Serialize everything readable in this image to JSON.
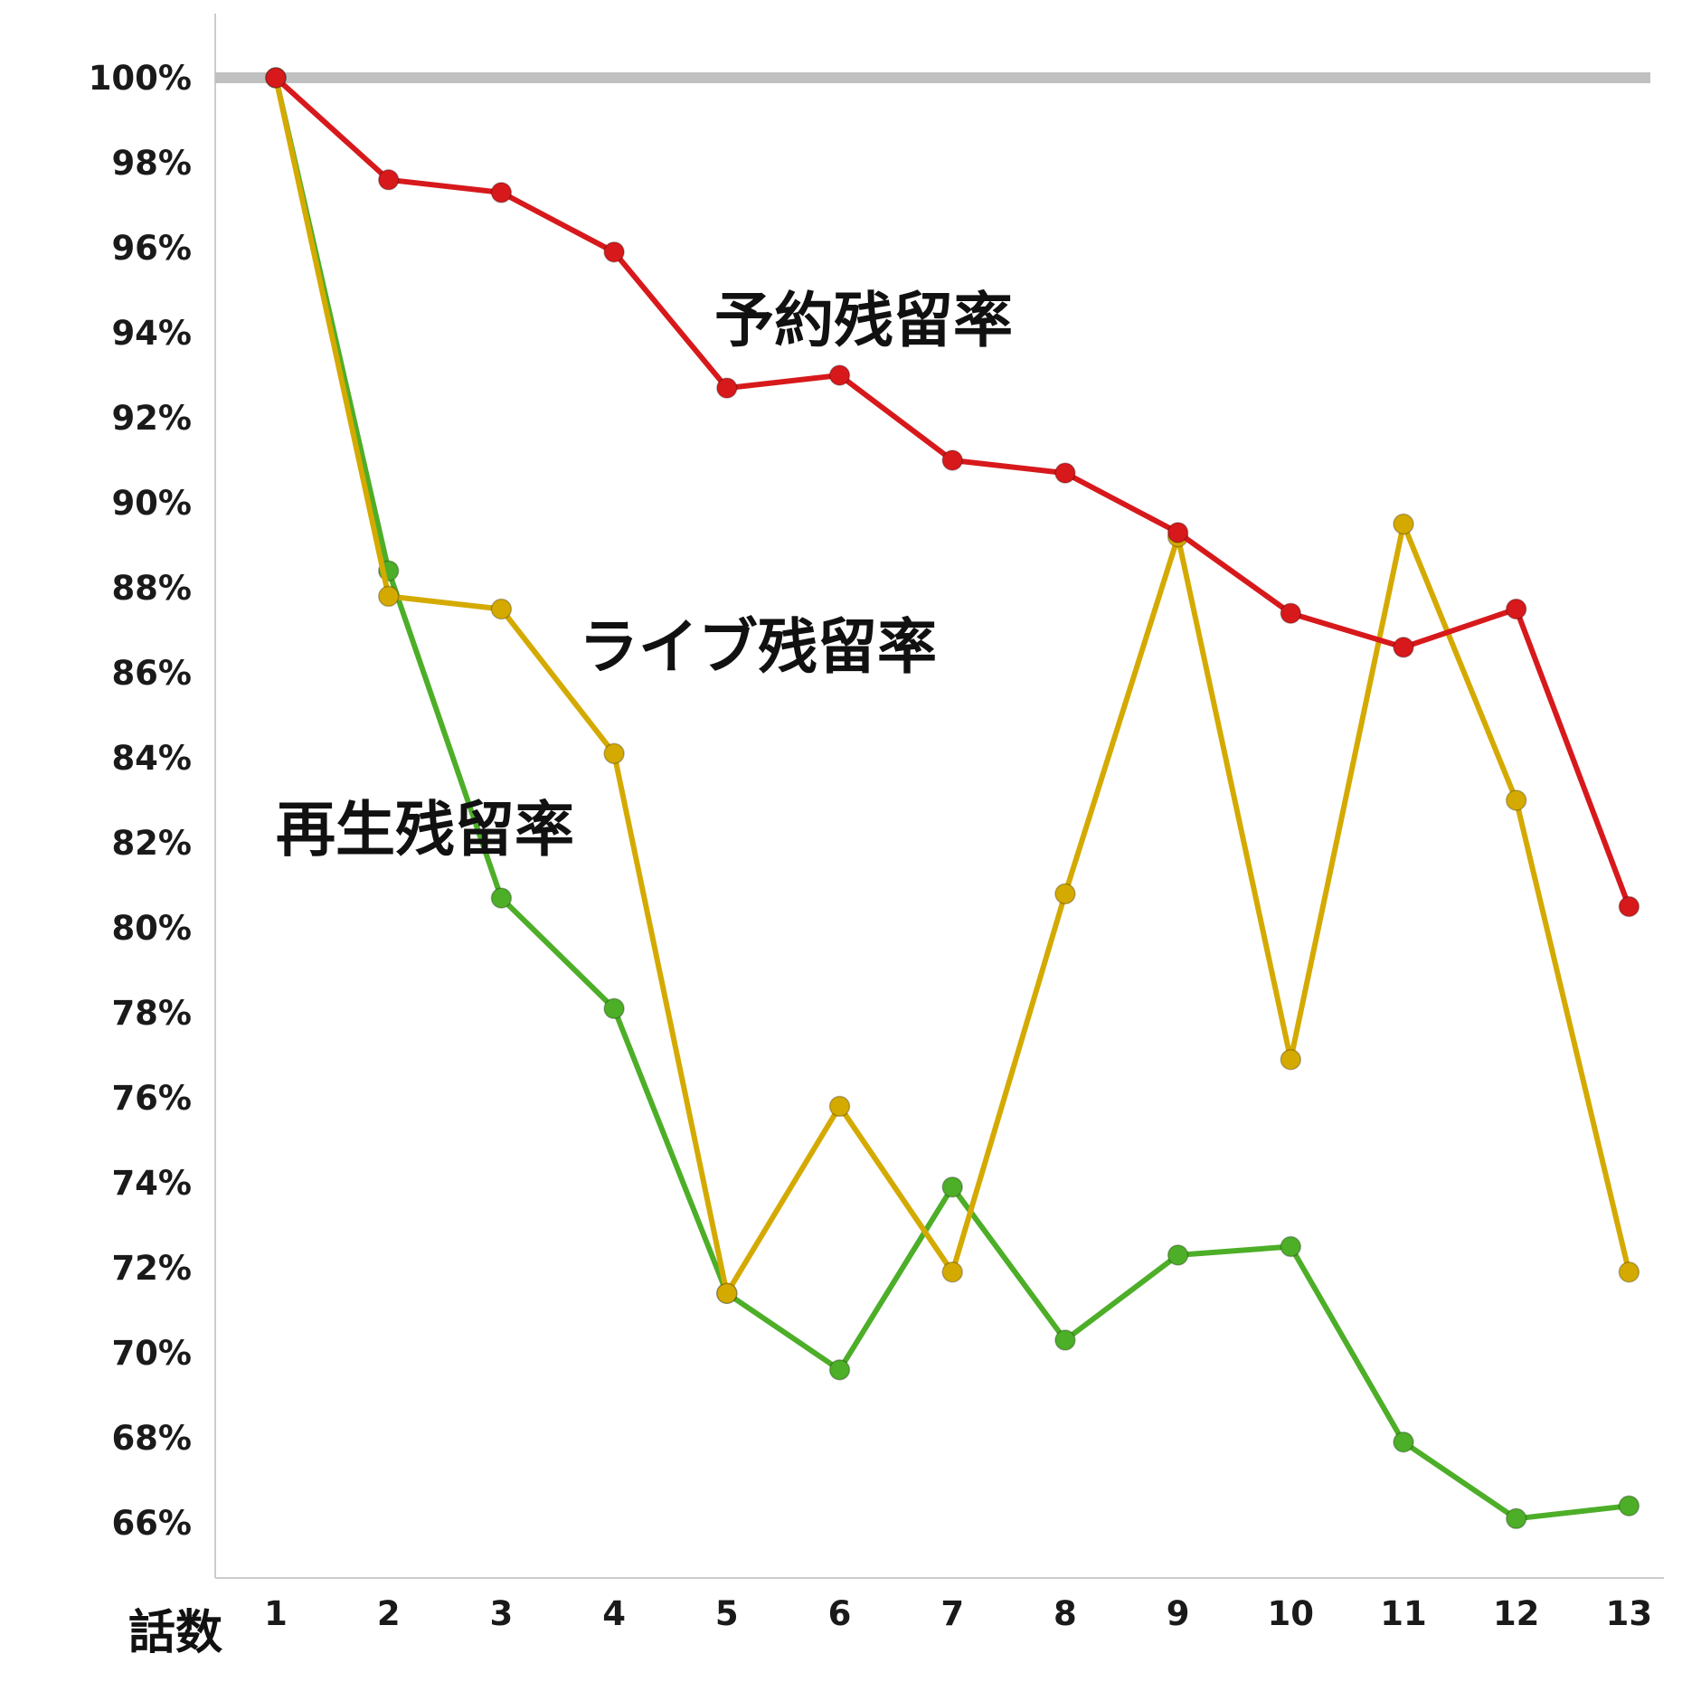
{
  "chart_data": {
    "type": "line",
    "title": "",
    "xlabel": "話数",
    "ylabel": "",
    "x": [
      1,
      2,
      3,
      4,
      5,
      6,
      7,
      8,
      9,
      10,
      11,
      12,
      13
    ],
    "ylim": [
      65,
      100.5
    ],
    "yticks": [
      100,
      98,
      96,
      94,
      92,
      90,
      88,
      86,
      84,
      82,
      80,
      78,
      76,
      74,
      72,
      70,
      68,
      66
    ],
    "ytick_labels": [
      "100%",
      "98%",
      "96%",
      "94%",
      "92%",
      "90%",
      "88%",
      "86%",
      "84%",
      "82%",
      "80%",
      "78%",
      "76%",
      "74%",
      "72%",
      "70%",
      "68%",
      "66%"
    ],
    "xtick_labels": [
      "1",
      "2",
      "3",
      "4",
      "5",
      "6",
      "7",
      "8",
      "9",
      "10",
      "11",
      "12",
      "13"
    ],
    "reference_line": {
      "value": 100,
      "color": "#c0c0c0"
    },
    "grid": false,
    "series": [
      {
        "name": "予約残留率",
        "color": "#d7191c",
        "values": [
          100,
          97.6,
          97.3,
          95.9,
          92.7,
          93.0,
          91.0,
          90.7,
          89.3,
          87.4,
          86.6,
          87.5,
          80.5
        ]
      },
      {
        "name": "ライブ残留率",
        "color": "#d4aa00",
        "values": [
          100,
          87.8,
          87.5,
          84.1,
          71.4,
          75.8,
          71.9,
          80.8,
          89.2,
          76.9,
          89.5,
          83.0,
          71.9
        ]
      },
      {
        "name": "再生残留率",
        "color": "#4dae28",
        "values": [
          100,
          88.4,
          80.7,
          78.1,
          71.4,
          69.6,
          73.9,
          70.3,
          72.3,
          72.5,
          67.9,
          66.1,
          66.4
        ]
      }
    ]
  }
}
